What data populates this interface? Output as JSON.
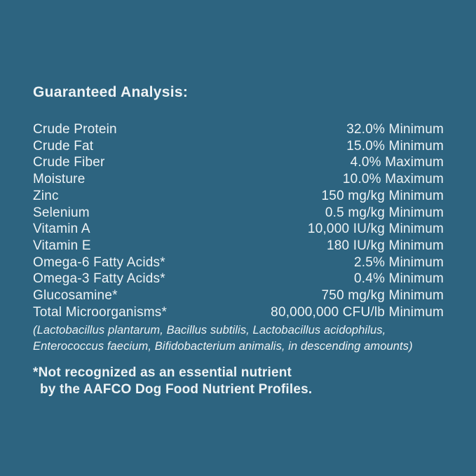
{
  "colors": {
    "background": "#2d6480",
    "text": "#eef3f5"
  },
  "heading": "Guaranteed Analysis:",
  "rows": [
    {
      "label": "Crude Protein",
      "value": "32.0% Minimum"
    },
    {
      "label": "Crude Fat",
      "value": "15.0% Minimum"
    },
    {
      "label": "Crude Fiber",
      "value": "4.0% Maximum"
    },
    {
      "label": "Moisture",
      "value": "10.0% Maximum"
    },
    {
      "label": "Zinc",
      "value": "150 mg/kg Minimum"
    },
    {
      "label": "Selenium",
      "value": "0.5 mg/kg Minimum"
    },
    {
      "label": "Vitamin A",
      "value": "10,000 IU/kg Minimum"
    },
    {
      "label": "Vitamin E",
      "value": "180 IU/kg Minimum"
    },
    {
      "label": "Omega-6 Fatty Acids*",
      "value": "2.5% Minimum"
    },
    {
      "label": "Omega-3 Fatty Acids*",
      "value": "0.4% Minimum"
    },
    {
      "label": "Glucosamine*",
      "value": "750 mg/kg Minimum"
    },
    {
      "label": "Total Microorganisms*",
      "value": "80,000,000 CFU/lb Minimum"
    }
  ],
  "microorganisms_note": {
    "line1": "(Lactobacillus plantarum, Bacillus subtilis, Lactobacillus acidophilus,",
    "line2": "Enterococcus faecium, Bifidobacterium animalis, in descending amounts)"
  },
  "footnote": {
    "line1": "*Not recognized as an essential nutrient",
    "line2": "by the AAFCO Dog Food Nutrient Profiles."
  }
}
